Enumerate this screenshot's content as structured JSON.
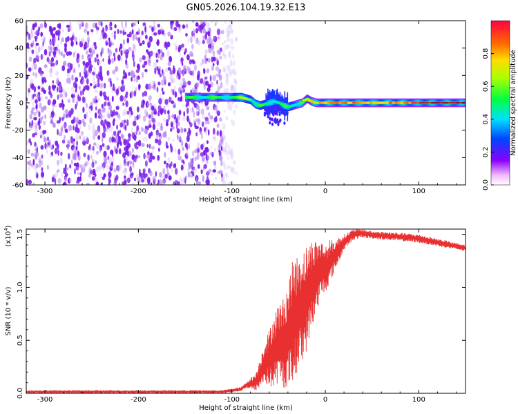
{
  "title": "GN05.2026.104.19.32.E13",
  "chart_data": [
    {
      "type": "heatmap",
      "name": "spectrogram",
      "xlabel": "Height of straight line (km)",
      "ylabel": "Frequency (Hz)",
      "xlim": [
        -320,
        150
      ],
      "ylim": [
        -60,
        60
      ],
      "xticks": [
        -300,
        -200,
        -100,
        0,
        100
      ],
      "xtick_labels": [
        "-300",
        "-200",
        "-100",
        "0",
        "100"
      ],
      "yticks": [
        -60,
        -40,
        -20,
        0,
        20,
        40,
        60
      ],
      "ytick_labels": [
        "-60",
        "-40",
        "-20",
        "0",
        "20",
        "40",
        "60"
      ],
      "noise_region_km": [
        -320,
        -100
      ],
      "noise_color": "#7b1fe8",
      "ridge": {
        "x": [
          -150,
          -130,
          -110,
          -100,
          -90,
          -85,
          -80,
          -75,
          -70,
          -65,
          -60,
          -55,
          -50,
          -45,
          -40,
          -35,
          -30,
          -25,
          -20,
          -15,
          -10,
          0,
          25,
          50,
          75,
          100,
          125,
          150
        ],
        "freq": [
          4,
          4,
          4,
          4,
          4,
          3,
          2,
          -1,
          -2,
          -1,
          0,
          1,
          0,
          -2,
          -3,
          -2,
          -1,
          0,
          3,
          1,
          0,
          0,
          0,
          0,
          0,
          0,
          0,
          0
        ],
        "amplitude": [
          0.35,
          0.5,
          0.45,
          0.5,
          0.7,
          0.75,
          0.5,
          0.4,
          0.45,
          0.5,
          0.4,
          0.45,
          0.35,
          0.3,
          0.35,
          0.4,
          0.5,
          0.55,
          0.75,
          0.8,
          0.7,
          0.8,
          0.85,
          0.8,
          0.85,
          0.9,
          0.95,
          0.95
        ]
      },
      "colorbar": {
        "label": "Normalized spectral amplitude",
        "range": [
          0,
          1
        ],
        "ticks": [
          0.0,
          0.2,
          0.4,
          0.6,
          0.8
        ],
        "tick_labels": [
          "0.0",
          "0.2",
          "0.4",
          "0.6",
          "0.8"
        ]
      }
    },
    {
      "type": "line",
      "name": "snr",
      "xlabel": "Height of straight line (km)",
      "ylabel": "SNR (10 * v/v)",
      "yscale_label": "(x10",
      "yscale_exp": "4",
      "xlim": [
        -320,
        150
      ],
      "ylim": [
        0,
        1.55
      ],
      "xticks": [
        -300,
        -200,
        -100,
        0,
        100
      ],
      "xtick_labels": [
        "-300",
        "-200",
        "-100",
        "0",
        "100"
      ],
      "yticks": [
        0.0,
        0.5,
        1.0,
        1.5
      ],
      "ytick_labels": [
        "0.0",
        "0.5",
        "1.0",
        "1.5"
      ],
      "color": "#e83030",
      "envelope": {
        "x": [
          -320,
          -150,
          -110,
          -90,
          -85,
          -80,
          -75,
          -70,
          -65,
          -60,
          -55,
          -50,
          -45,
          -40,
          -35,
          -30,
          -25,
          -20,
          -15,
          -10,
          -5,
          0,
          5,
          10,
          15,
          20,
          30,
          40,
          50,
          75,
          100,
          125,
          150
        ],
        "lower": [
          0.0,
          0.0,
          0.0,
          0.02,
          0.05,
          0.04,
          0.02,
          0.05,
          0.1,
          0.05,
          0.05,
          0.1,
          0.05,
          0.05,
          0.08,
          0.2,
          0.3,
          0.4,
          0.6,
          0.75,
          0.9,
          0.95,
          1.05,
          1.15,
          1.25,
          1.35,
          1.45,
          1.47,
          1.46,
          1.44,
          1.42,
          1.38,
          1.34
        ],
        "upper": [
          0.03,
          0.03,
          0.03,
          0.06,
          0.1,
          0.15,
          0.18,
          0.32,
          0.5,
          0.6,
          0.75,
          0.85,
          0.9,
          1.05,
          1.25,
          1.3,
          1.35,
          1.4,
          1.45,
          1.45,
          1.45,
          1.4,
          1.45,
          1.45,
          1.48,
          1.5,
          1.55,
          1.55,
          1.53,
          1.52,
          1.5,
          1.45,
          1.4
        ]
      }
    }
  ]
}
